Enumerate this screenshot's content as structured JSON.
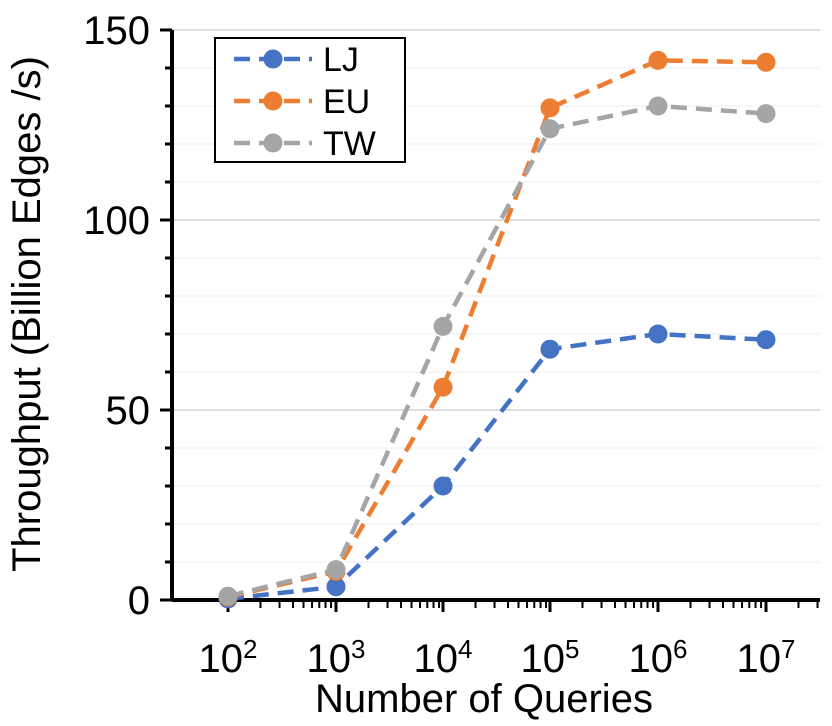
{
  "chart_data": {
    "type": "line",
    "title": "",
    "xlabel": "Number of Queries",
    "ylabel": "Throughput (Billion Edges /s)",
    "x_tick_labels": [
      {
        "base": "10",
        "exp": "2"
      },
      {
        "base": "10",
        "exp": "3"
      },
      {
        "base": "10",
        "exp": "4"
      },
      {
        "base": "10",
        "exp": "5"
      },
      {
        "base": "10",
        "exp": "6"
      },
      {
        "base": "10",
        "exp": "7"
      }
    ],
    "x_scale": "log10",
    "x_log": [
      2,
      3,
      4,
      5,
      6,
      7
    ],
    "ylim": [
      0,
      150
    ],
    "y_major_ticks": [
      0,
      50,
      100,
      150
    ],
    "y_major_tick_labels": [
      "0",
      "50",
      "100",
      "150"
    ],
    "y_minor_step": 10,
    "grid": true,
    "legend_position": "top-left",
    "line_style": "dashed",
    "series": [
      {
        "name": "LJ",
        "color": "#4472C4",
        "values": [
          0.3,
          3.5,
          30,
          66,
          70,
          68.5
        ]
      },
      {
        "name": "EU",
        "color": "#ED7D31",
        "values": [
          0.8,
          7.5,
          56,
          129.5,
          142,
          141.5
        ]
      },
      {
        "name": "TW",
        "color": "#A5A5A5",
        "values": [
          1,
          8,
          72,
          124,
          130,
          128
        ]
      }
    ]
  }
}
